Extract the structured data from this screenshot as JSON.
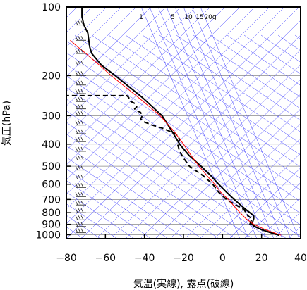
{
  "chart_data": {
    "type": "line",
    "title": "",
    "xlabel": "気温(実線), 露点(破線)",
    "ylabel": "気圧(hPa)",
    "xlim": [
      -80,
      40
    ],
    "ylim": [
      1040,
      100
    ],
    "y_scale": "log",
    "x_ticks": [
      -80,
      -60,
      -40,
      -20,
      0,
      20,
      40
    ],
    "x_tick_labels": [
      "−80",
      "−60",
      "−40",
      "−20",
      "0",
      "20",
      "40"
    ],
    "y_ticks": [
      100,
      200,
      300,
      400,
      500,
      600,
      700,
      800,
      900,
      1000
    ],
    "y_tick_labels": [
      "100",
      "200",
      "300",
      "400",
      "500",
      "600",
      "700",
      "800",
      "900",
      "1000"
    ],
    "grid": true,
    "mixing_ratio_labels": [
      "1",
      "5",
      "10",
      "15",
      "20g"
    ],
    "series": [
      {
        "name": "",
        "style": "solid",
        "color": "#000000",
        "pressure": [
          1005,
          975,
          950,
          925,
          900,
          850,
          825,
          800,
          775,
          750,
          700,
          650,
          600,
          550,
          500,
          450,
          400,
          350,
          300,
          250,
          220,
          200,
          180,
          160,
          150,
          140,
          130,
          125,
          120,
          115,
          110,
          105,
          100
        ],
        "values": [
          29,
          24,
          20,
          17,
          15,
          16,
          16,
          14,
          12,
          10,
          6,
          2,
          -2,
          -6,
          -11,
          -17,
          -22,
          -26,
          -31,
          -41,
          -49,
          -55,
          -62,
          -67,
          -68,
          -68.5,
          -69,
          -70,
          -71,
          -71.5,
          -72,
          -72,
          -72
        ]
      },
      {
        "name": "",
        "style": "dashed",
        "color": "#000000",
        "pressure": [
          1005,
          975,
          950,
          925,
          900,
          850,
          825,
          800,
          775,
          750,
          700,
          650,
          600,
          550,
          500,
          460,
          430,
          400,
          380,
          360,
          340,
          330,
          320,
          315,
          310,
          300,
          290,
          285,
          280,
          275,
          270,
          265,
          260,
          255,
          250,
          245,
          245
        ],
        "values": [
          29,
          24,
          20,
          17,
          14,
          15,
          13,
          12,
          11,
          8,
          2,
          -2,
          -5,
          -10,
          -17,
          -20,
          -22,
          -23,
          -22,
          -24,
          -31,
          -36,
          -40,
          -41,
          -42,
          -41,
          -42,
          -44,
          -45,
          -44,
          -44,
          -45,
          -47,
          -48,
          -48,
          -49,
          -80
        ]
      },
      {
        "name": "",
        "style": "solid",
        "color": "#ff0000",
        "pressure": [
          1005,
          950,
          900,
          850,
          800,
          750,
          700,
          650,
          600,
          550,
          500,
          450,
          400,
          350,
          300,
          250,
          200,
          180,
          160,
          150,
          140
        ],
        "values": [
          30,
          22,
          16,
          12,
          9,
          6,
          3,
          -1,
          -4,
          -8,
          -12,
          -16,
          -20,
          -25,
          -32,
          -43,
          -57,
          -63,
          -70,
          -74,
          -78
        ]
      }
    ]
  }
}
